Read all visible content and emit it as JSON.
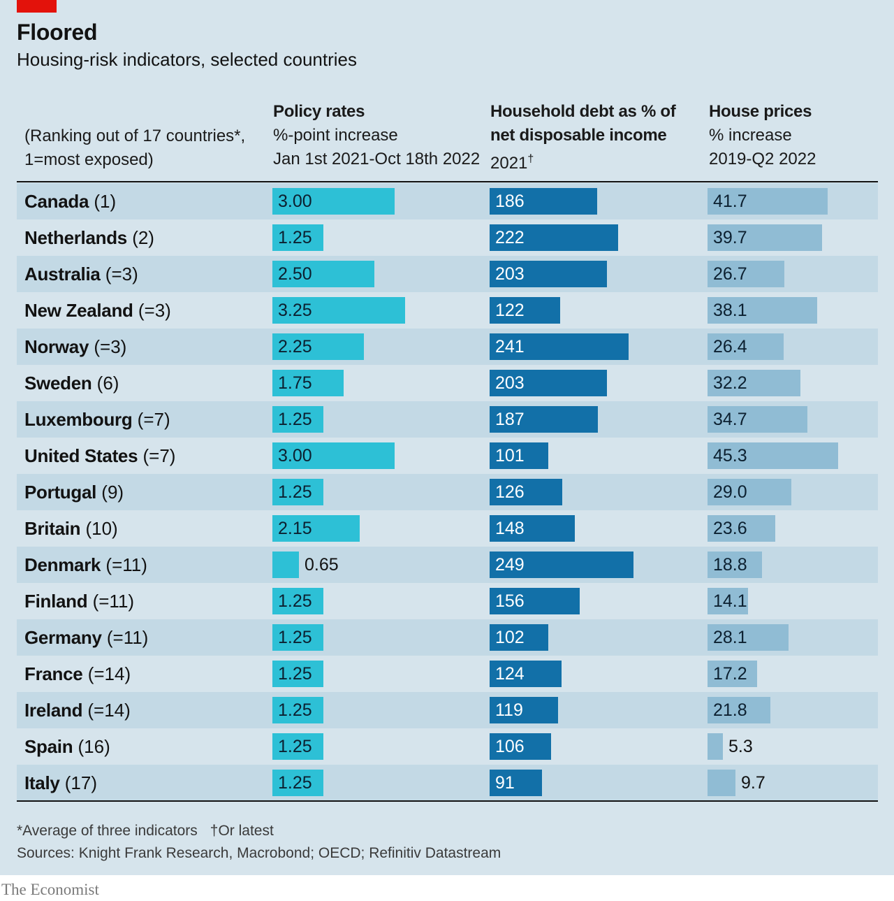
{
  "header": {
    "title": "Floored",
    "subtitle": "Housing-risk indicators, selected countries"
  },
  "columns": {
    "ranking_note_line1": "(Ranking out of 17 countries*,",
    "ranking_note_line2": "1=most exposed)",
    "policy_title": "Policy rates",
    "policy_sub1": "%-point increase",
    "policy_sub2": "Jan 1st 2021-Oct 18th 2022",
    "debt_title1": "Household debt as % of",
    "debt_title2": "net disposable income",
    "debt_sub": "2021",
    "debt_sub_mark": "†",
    "prices_title": "House prices",
    "prices_sub1": "% increase",
    "prices_sub2": "2019-Q2 2022"
  },
  "footer": {
    "footnote1": "*Average of three indicators",
    "footnote2": "†Or latest",
    "sources": "Sources: Knight Frank Research, Macrobond; OECD; Refinitiv Datastream",
    "brand": "The Economist"
  },
  "colors": {
    "background": "#d6e4ec",
    "row_shade": "#c3d9e5",
    "accent_red": "#e3120b",
    "policy_bar": "#2dc0d6",
    "debt_bar": "#1270a8",
    "prices_bar": "#90bcd4"
  },
  "chart_data": {
    "type": "bar",
    "title": "Floored",
    "subtitle": "Housing-risk indicators, selected countries",
    "categories": [
      "Canada",
      "Netherlands",
      "Australia",
      "New Zealand",
      "Norway",
      "Sweden",
      "Luxembourg",
      "United States",
      "Portugal",
      "Britain",
      "Denmark",
      "Finland",
      "Germany",
      "France",
      "Ireland",
      "Spain",
      "Italy"
    ],
    "ranks": [
      "(1)",
      "(2)",
      "(=3)",
      "(=3)",
      "(=3)",
      "(6)",
      "(=7)",
      "(=7)",
      "(9)",
      "(10)",
      "(=11)",
      "(=11)",
      "(=11)",
      "(=14)",
      "(=14)",
      "(16)",
      "(17)"
    ],
    "series": [
      {
        "name": "Policy rates",
        "labels": [
          "3.00",
          "1.25",
          "2.50",
          "3.25",
          "2.25",
          "1.75",
          "1.25",
          "3.00",
          "1.25",
          "2.15",
          "0.65",
          "1.25",
          "1.25",
          "1.25",
          "1.25",
          "1.25",
          "1.25"
        ],
        "values": [
          3.0,
          1.25,
          2.5,
          3.25,
          2.25,
          1.75,
          1.25,
          3.0,
          1.25,
          2.15,
          0.65,
          1.25,
          1.25,
          1.25,
          1.25,
          1.25,
          1.25
        ]
      },
      {
        "name": "Household debt as % of net disposable income",
        "labels": [
          "186",
          "222",
          "203",
          "122",
          "241",
          "203",
          "187",
          "101",
          "126",
          "148",
          "249",
          "156",
          "102",
          "124",
          "119",
          "106",
          "91"
        ],
        "values": [
          186,
          222,
          203,
          122,
          241,
          203,
          187,
          101,
          126,
          148,
          249,
          156,
          102,
          124,
          119,
          106,
          91
        ]
      },
      {
        "name": "House prices",
        "labels": [
          "41.7",
          "39.7",
          "26.7",
          "38.1",
          "26.4",
          "32.2",
          "34.7",
          "45.3",
          "29.0",
          "23.6",
          "18.8",
          "14.1",
          "28.1",
          "17.2",
          "21.8",
          "5.3",
          "9.7"
        ],
        "values": [
          41.7,
          39.7,
          26.7,
          38.1,
          26.4,
          32.2,
          34.7,
          45.3,
          29.0,
          23.6,
          18.8,
          14.1,
          28.1,
          17.2,
          21.8,
          5.3,
          9.7
        ]
      }
    ],
    "grid": false,
    "legend": "none"
  }
}
